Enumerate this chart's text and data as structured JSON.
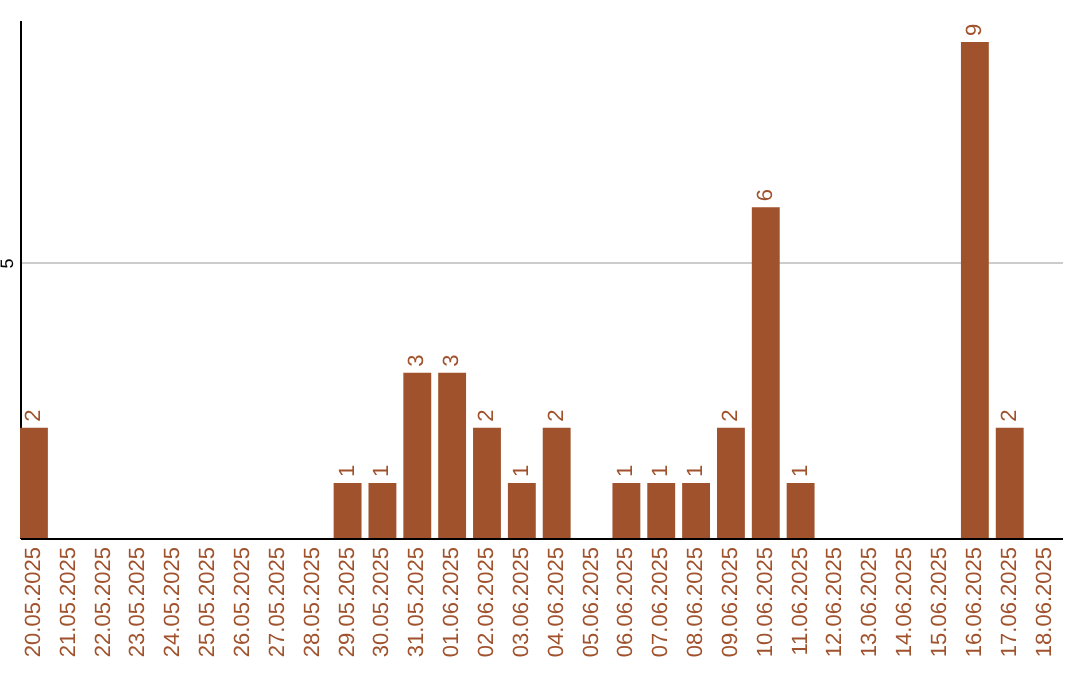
{
  "chart_data": {
    "type": "bar",
    "categories": [
      "20.05.2025",
      "21.05.2025",
      "22.05.2025",
      "23.05.2025",
      "24.05.2025",
      "25.05.2025",
      "26.05.2025",
      "27.05.2025",
      "28.05.2025",
      "29.05.2025",
      "30.05.2025",
      "31.05.2025",
      "01.06.2025",
      "02.06.2025",
      "03.06.2025",
      "04.06.2025",
      "05.06.2025",
      "06.06.2025",
      "07.06.2025",
      "08.06.2025",
      "09.06.2025",
      "10.06.2025",
      "11.06.2025",
      "12.06.2025",
      "13.06.2025",
      "14.06.2025",
      "15.06.2025",
      "16.06.2025",
      "17.06.2025",
      "18.06.2025"
    ],
    "values": [
      2,
      0,
      0,
      0,
      0,
      0,
      0,
      0,
      0,
      1,
      1,
      3,
      3,
      2,
      1,
      2,
      0,
      1,
      1,
      1,
      2,
      6,
      1,
      0,
      0,
      0,
      0,
      9,
      2,
      0
    ],
    "value_labels": [
      "2",
      null,
      null,
      null,
      null,
      null,
      null,
      null,
      null,
      "1",
      "1",
      "3",
      "3",
      "2",
      "1",
      "2",
      null,
      "1",
      "1",
      "1",
      "2",
      "6",
      "1",
      null,
      null,
      null,
      null,
      "9",
      "2",
      null
    ],
    "color": "#a0522d",
    "ylim": [
      0,
      9.4
    ],
    "yticks": [
      5
    ],
    "grid": "y"
  }
}
